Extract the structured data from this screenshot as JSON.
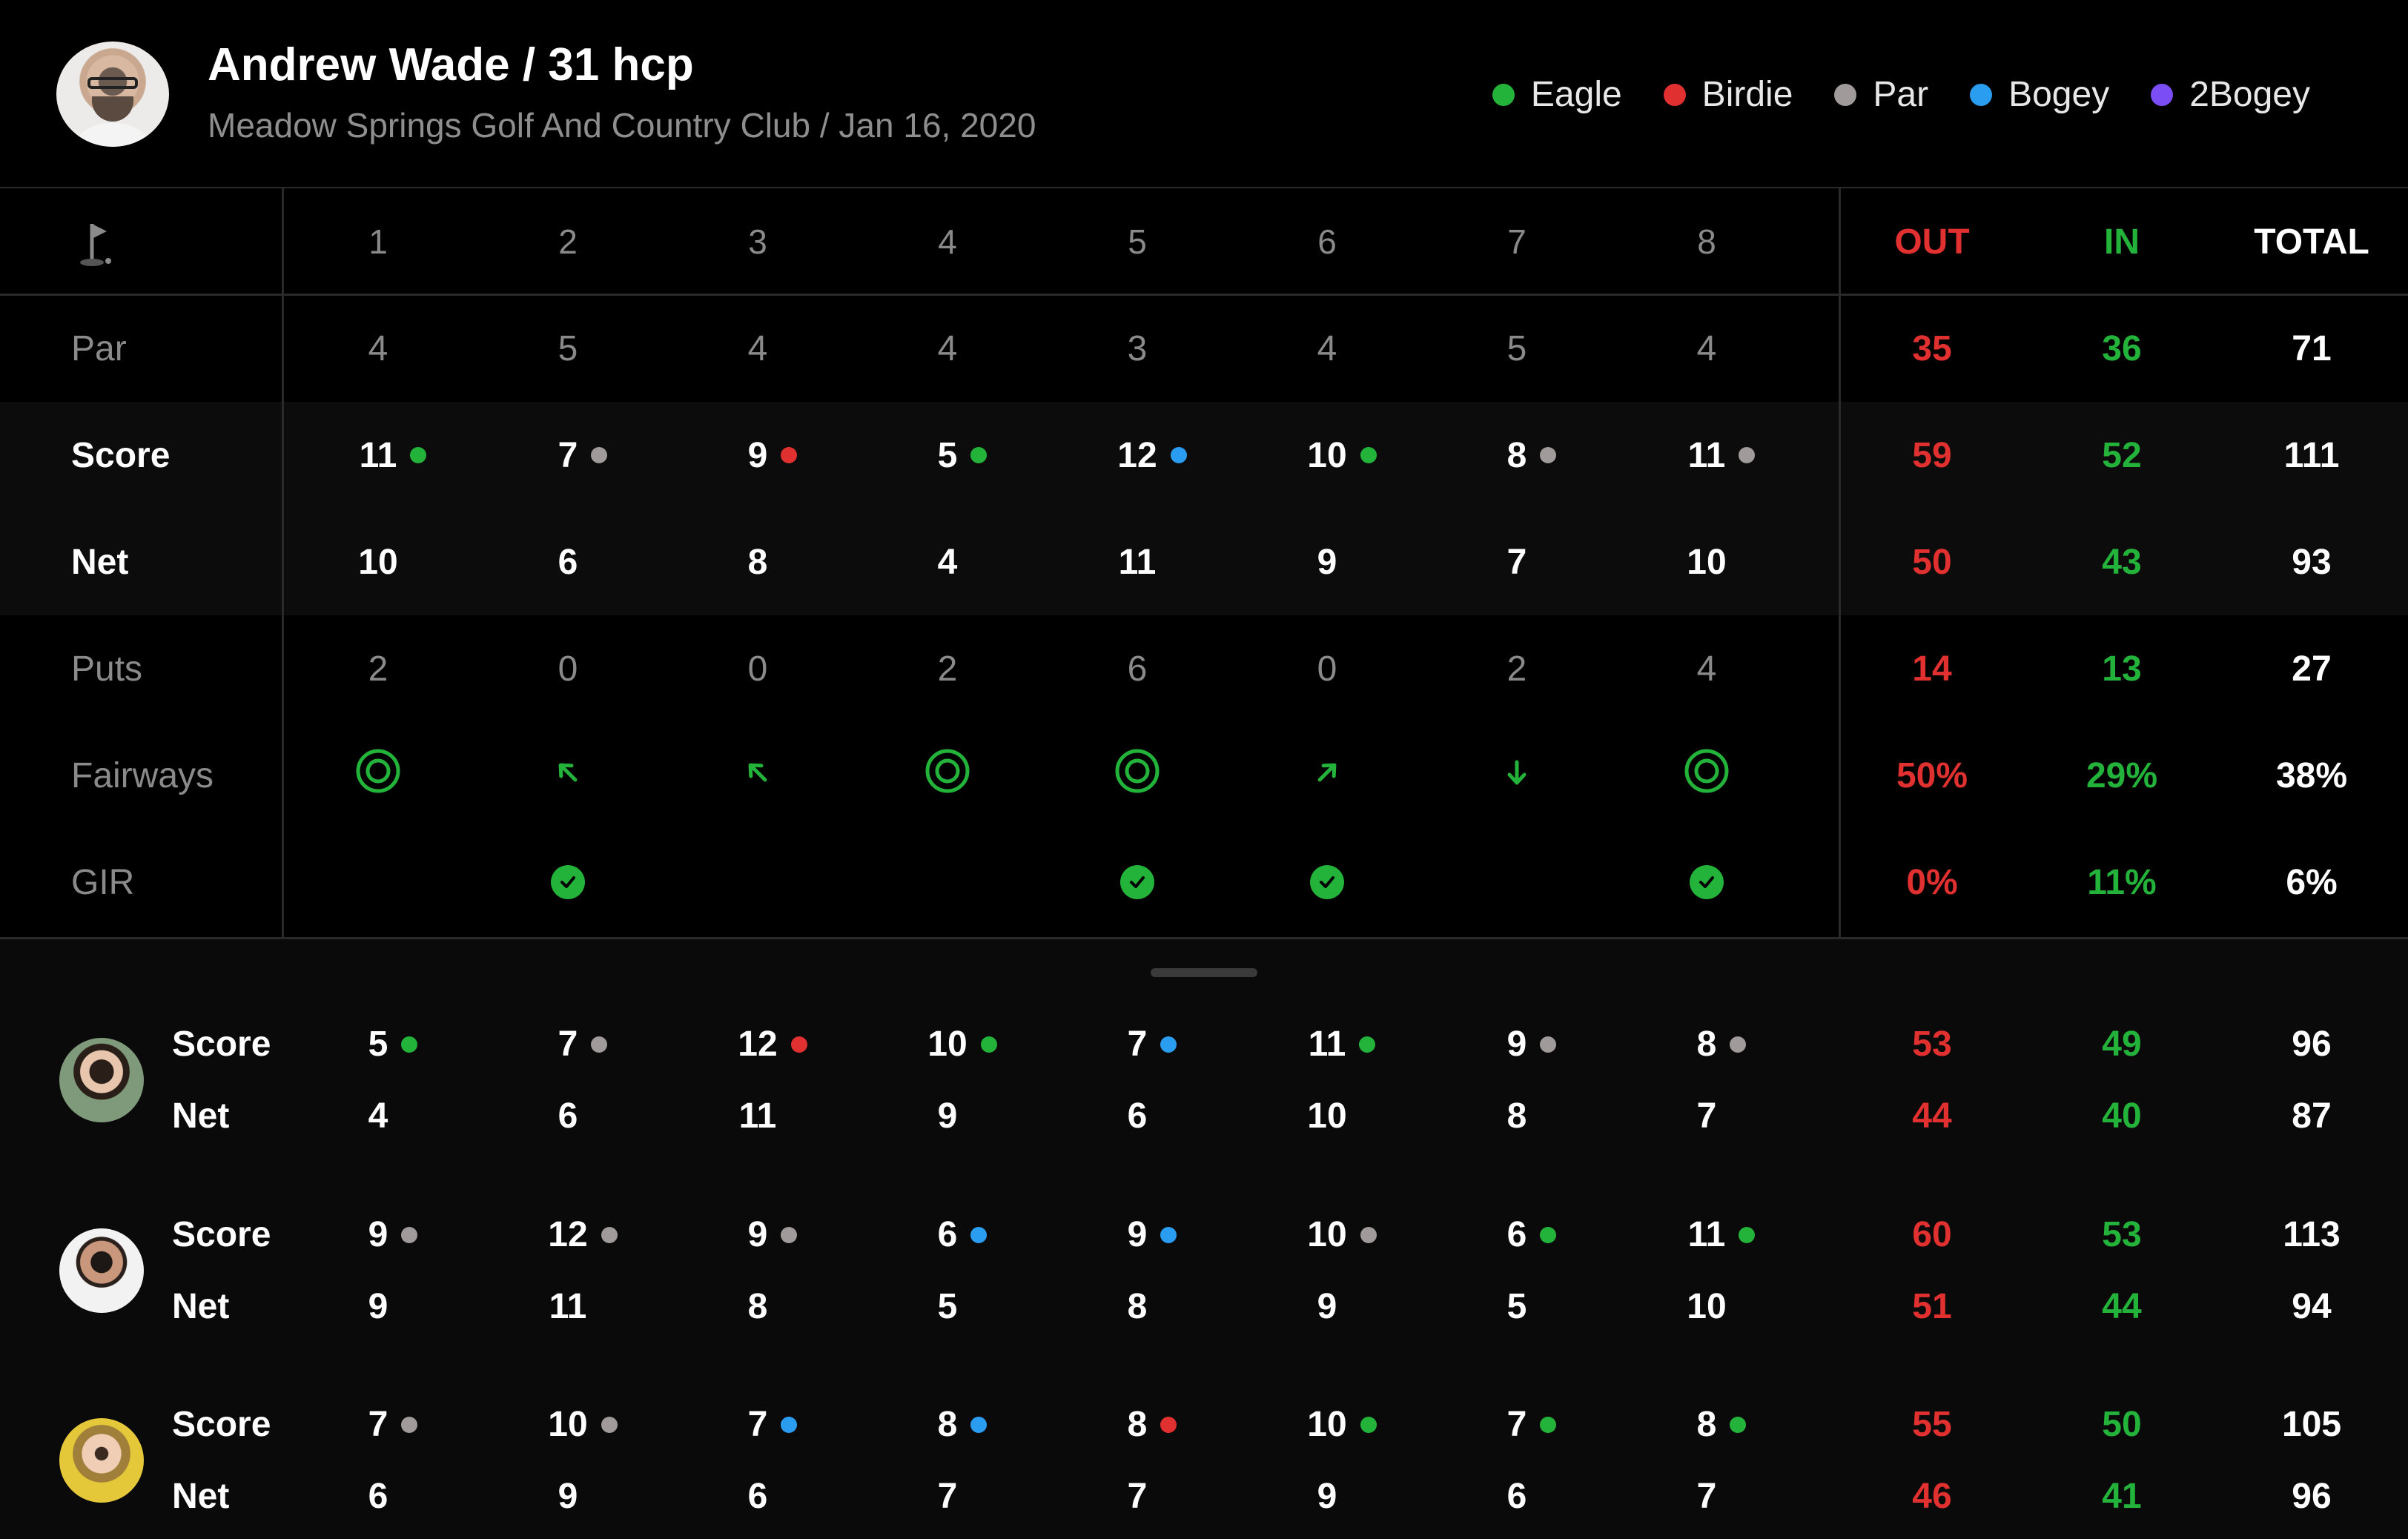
{
  "header": {
    "title": "Andrew Wade / 31 hcp",
    "subtitle": "Meadow Springs Golf And Country Club / Jan 16, 2020",
    "legend": [
      {
        "label": "Eagle",
        "color": "#24b33a"
      },
      {
        "label": "Birdie",
        "color": "#e0302f"
      },
      {
        "label": "Par",
        "color": "#a09a9a"
      },
      {
        "label": "Bogey",
        "color": "#2b9df0"
      },
      {
        "label": "2Bogey",
        "color": "#7b4df5"
      }
    ]
  },
  "colors": {
    "eagle": "#24b33a",
    "birdie": "#e0302f",
    "par": "#a09a9a",
    "bogey": "#2b9df0",
    "double_bogey": "#7b4df5",
    "out": "#e0302f",
    "in": "#24b33a"
  },
  "holes": [
    "1",
    "2",
    "3",
    "4",
    "5",
    "6",
    "7",
    "8"
  ],
  "summary_headers": {
    "out": "OUT",
    "in": "IN",
    "total": "TOTAL"
  },
  "flag_icon": "flag-icon",
  "rows": {
    "par": {
      "label": "Par",
      "values": [
        "4",
        "5",
        "4",
        "4",
        "3",
        "4",
        "5",
        "4"
      ],
      "out": "35",
      "in": "36",
      "total": "71"
    },
    "score": {
      "label": "Score",
      "values": [
        "11",
        "7",
        "9",
        "5",
        "12",
        "10",
        "8",
        "11"
      ],
      "status": [
        "eagle",
        "par",
        "birdie",
        "eagle",
        "bogey",
        "eagle",
        "par",
        "par"
      ],
      "out": "59",
      "in": "52",
      "total": "111"
    },
    "net": {
      "label": "Net",
      "values": [
        "10",
        "6",
        "8",
        "4",
        "11",
        "9",
        "7",
        "10"
      ],
      "out": "50",
      "in": "43",
      "total": "93"
    },
    "puts": {
      "label": "Puts",
      "values": [
        "2",
        "0",
        "0",
        "2",
        "6",
        "0",
        "2",
        "4"
      ],
      "out": "14",
      "in": "13",
      "total": "27"
    },
    "fairways": {
      "label": "Fairways",
      "icons": [
        "target-icon",
        "arrow-up-left-icon",
        "arrow-up-left-icon",
        "target-icon",
        "target-icon",
        "arrow-up-right-icon",
        "arrow-down-icon",
        "target-icon"
      ],
      "out": "50%",
      "in": "29%",
      "total": "38%"
    },
    "gir": {
      "label": "GIR",
      "hit": [
        false,
        true,
        false,
        false,
        true,
        true,
        false,
        true
      ],
      "out": "0%",
      "in": "11%",
      "total": "6%"
    }
  },
  "players": [
    {
      "avatar": "avatar-woman-1",
      "score_label": "Score",
      "net_label": "Net",
      "score": [
        "5",
        "7",
        "12",
        "10",
        "7",
        "11",
        "9",
        "8"
      ],
      "status": [
        "eagle",
        "par",
        "birdie",
        "eagle",
        "bogey",
        "eagle",
        "par",
        "par"
      ],
      "net": [
        "4",
        "6",
        "11",
        "9",
        "6",
        "10",
        "8",
        "7"
      ],
      "score_out": "53",
      "score_in": "49",
      "score_total": "96",
      "net_out": "44",
      "net_in": "40",
      "net_total": "87"
    },
    {
      "avatar": "avatar-man-2",
      "score_label": "Score",
      "net_label": "Net",
      "score": [
        "9",
        "12",
        "9",
        "6",
        "9",
        "10",
        "6",
        "11"
      ],
      "status": [
        "par",
        "par",
        "par",
        "bogey",
        "bogey",
        "par",
        "eagle",
        "eagle"
      ],
      "net": [
        "9",
        "11",
        "8",
        "5",
        "8",
        "9",
        "5",
        "10"
      ],
      "score_out": "60",
      "score_in": "53",
      "score_total": "113",
      "net_out": "51",
      "net_in": "44",
      "net_total": "94"
    },
    {
      "avatar": "avatar-woman-3",
      "score_label": "Score",
      "net_label": "Net",
      "score": [
        "7",
        "10",
        "7",
        "8",
        "8",
        "10",
        "7",
        "8"
      ],
      "status": [
        "par",
        "par",
        "bogey",
        "bogey",
        "birdie",
        "eagle",
        "eagle",
        "eagle"
      ],
      "net": [
        "6",
        "9",
        "6",
        "7",
        "7",
        "9",
        "6",
        "7"
      ],
      "score_out": "55",
      "score_in": "50",
      "score_total": "105",
      "net_out": "46",
      "net_in": "41",
      "net_total": "96"
    }
  ]
}
